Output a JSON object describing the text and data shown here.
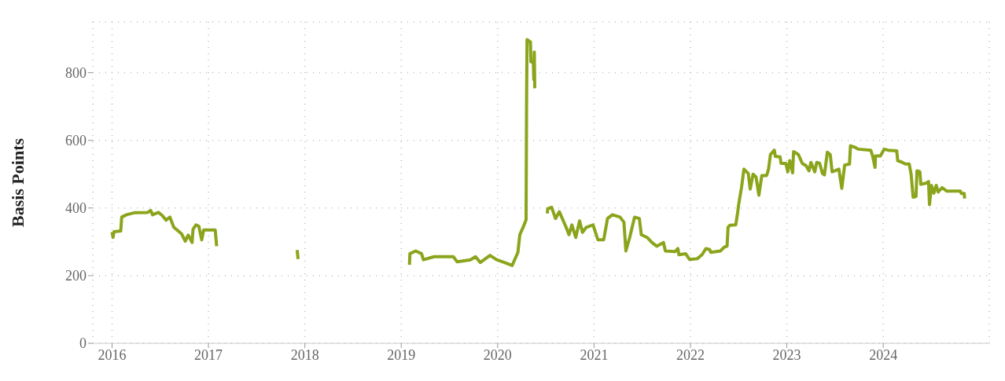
{
  "chart_data": {
    "type": "line",
    "ylabel": "Basis Points",
    "xlim": [
      2015.8,
      2025.1
    ],
    "xticks": [
      2016,
      2017,
      2018,
      2019,
      2020,
      2021,
      2022,
      2023,
      2024
    ],
    "ylim": [
      0,
      950
    ],
    "yticks": [
      0,
      200,
      400,
      600,
      800
    ],
    "grid": true,
    "line_style": "solid",
    "marker": "none",
    "series": [
      {
        "color": "#8aa51c",
        "x": [
          2016.0,
          2016.01,
          2016.02,
          2016.09,
          2016.1,
          2016.15,
          2016.23,
          2016.37,
          2016.4,
          2016.42,
          2016.48,
          2016.52,
          2016.56,
          2016.6,
          2016.64,
          2016.72,
          2016.76,
          2016.79,
          2016.83,
          2016.84,
          2016.87,
          2016.9,
          2016.93,
          2016.95,
          2017.07,
          2017.085,
          2017.5,
          2017.92,
          2017.93,
          2018.5,
          2019.085,
          2019.09,
          2019.15,
          2019.21,
          2019.23,
          2019.34,
          2019.54,
          2019.58,
          2019.72,
          2019.77,
          2019.82,
          2019.92,
          2019.99,
          2020.07,
          2020.15,
          2020.21,
          2020.23,
          2020.27,
          2020.295,
          2020.3,
          2020.305,
          2020.34,
          2020.345,
          2020.37,
          2020.375,
          2020.38,
          2020.385,
          2020.45,
          2020.515,
          2020.52,
          2020.56,
          2020.6,
          2020.64,
          2020.71,
          2020.74,
          2020.77,
          2020.81,
          2020.85,
          2020.88,
          2020.92,
          2020.99,
          2021.04,
          2021.1,
          2021.14,
          2021.19,
          2021.27,
          2021.31,
          2021.33,
          2021.37,
          2021.42,
          2021.47,
          2021.49,
          2021.55,
          2021.6,
          2021.65,
          2021.72,
          2021.74,
          2021.84,
          2021.87,
          2021.88,
          2021.95,
          2021.99,
          2022.07,
          2022.12,
          2022.16,
          2022.2,
          2022.21,
          2022.31,
          2022.35,
          2022.38,
          2022.39,
          2022.41,
          2022.47,
          2022.49,
          2022.5,
          2022.53,
          2022.555,
          2022.6,
          2022.62,
          2022.65,
          2022.68,
          2022.71,
          2022.74,
          2022.79,
          2022.81,
          2022.83,
          2022.87,
          2022.88,
          2022.93,
          2022.94,
          2022.99,
          2023.01,
          2023.03,
          2023.04,
          2023.06,
          2023.07,
          2023.12,
          2023.16,
          2023.2,
          2023.23,
          2023.25,
          2023.29,
          2023.31,
          2023.34,
          2023.37,
          2023.39,
          2023.42,
          2023.45,
          2023.47,
          2023.5,
          2023.54,
          2023.57,
          2023.6,
          2023.65,
          2023.66,
          2023.71,
          2023.74,
          2023.87,
          2023.89,
          2023.915,
          2023.92,
          2023.97,
          2024.01,
          2024.05,
          2024.14,
          2024.15,
          2024.19,
          2024.23,
          2024.27,
          2024.29,
          2024.31,
          2024.34,
          2024.35,
          2024.38,
          2024.39,
          2024.45,
          2024.47,
          2024.48,
          2024.5,
          2024.525,
          2024.55,
          2024.57,
          2024.61,
          2024.66,
          2024.8,
          2024.81,
          2024.84,
          2024.845
        ],
        "values": [
          329,
          313,
          330,
          332,
          373,
          380,
          386,
          387,
          393,
          380,
          387,
          378,
          364,
          373,
          343,
          324,
          302,
          320,
          298,
          337,
          350,
          346,
          306,
          335,
          335,
          287,
          null,
          276,
          249,
          null,
          232,
          265,
          273,
          265,
          247,
          256,
          256,
          241,
          247,
          256,
          239,
          260,
          247,
          239,
          230,
          269,
          321,
          347,
          365,
          713,
          898,
          891,
          832,
          832,
          780,
          861,
          754,
          null,
          384,
          398,
          402,
          369,
          389,
          343,
          321,
          350,
          313,
          362,
          328,
          343,
          350,
          306,
          306,
          369,
          380,
          373,
          358,
          273,
          313,
          373,
          369,
          321,
          313,
          298,
          287,
          298,
          273,
          271,
          280,
          262,
          265,
          248,
          250,
          262,
          280,
          277,
          269,
          273,
          284,
          287,
          343,
          349,
          350,
          387,
          410,
          461,
          515,
          502,
          456,
          500,
          492,
          438,
          496,
          496,
          515,
          558,
          571,
          553,
          551,
          532,
          532,
          507,
          540,
          530,
          504,
          567,
          558,
          532,
          525,
          510,
          535,
          507,
          535,
          532,
          502,
          498,
          565,
          558,
          507,
          510,
          515,
          458,
          527,
          530,
          584,
          579,
          574,
          571,
          554,
          520,
          554,
          554,
          574,
          571,
          569,
          540,
          536,
          530,
          530,
          498,
          432,
          434,
          510,
          507,
          470,
          474,
          478,
          410,
          467,
          444,
          467,
          447,
          460,
          450,
          450,
          443,
          443,
          428
        ]
      }
    ]
  }
}
